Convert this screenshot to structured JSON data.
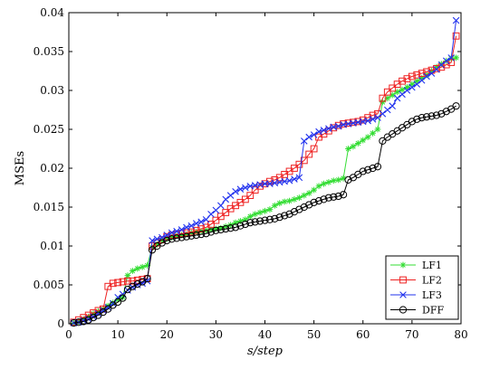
{
  "chart_data": {
    "type": "line",
    "xlabel": "s/step",
    "ylabel": "MSEs",
    "xlim": [
      0,
      80
    ],
    "ylim": [
      0,
      0.04
    ],
    "x_ticks": [
      "0",
      "10",
      "20",
      "30",
      "40",
      "50",
      "60",
      "70",
      "80"
    ],
    "y_ticks": [
      "0",
      "0.005",
      "0.01",
      "0.015",
      "0.02",
      "0.025",
      "0.03",
      "0.035",
      "0.04"
    ],
    "grid": false,
    "legend_position": "bottom-right",
    "x": [
      1,
      2,
      3,
      4,
      5,
      6,
      7,
      8,
      9,
      10,
      11,
      12,
      13,
      14,
      15,
      16,
      17,
      18,
      19,
      20,
      21,
      22,
      23,
      24,
      25,
      26,
      27,
      28,
      29,
      30,
      31,
      32,
      33,
      34,
      35,
      36,
      37,
      38,
      39,
      40,
      41,
      42,
      43,
      44,
      45,
      46,
      47,
      48,
      49,
      50,
      51,
      52,
      53,
      54,
      55,
      56,
      57,
      58,
      59,
      60,
      61,
      62,
      63,
      64,
      65,
      66,
      67,
      68,
      69,
      70,
      71,
      72,
      73,
      74,
      75,
      76,
      77,
      78,
      79
    ],
    "series": [
      {
        "name": "LF1",
        "color": "#33dd33",
        "marker": "asterisk",
        "values": [
          0.0001,
          0.0003,
          0.0006,
          0.0009,
          0.0013,
          0.0016,
          0.0019,
          0.0023,
          0.0027,
          0.0031,
          0.0034,
          0.0062,
          0.0068,
          0.0071,
          0.0073,
          0.0075,
          0.0098,
          0.0102,
          0.0107,
          0.0109,
          0.0111,
          0.0113,
          0.0114,
          0.0115,
          0.0117,
          0.0118,
          0.0119,
          0.012,
          0.0121,
          0.0122,
          0.0123,
          0.0125,
          0.0127,
          0.013,
          0.0132,
          0.0134,
          0.0138,
          0.0141,
          0.0143,
          0.0145,
          0.0147,
          0.0152,
          0.0155,
          0.0157,
          0.0158,
          0.016,
          0.0162,
          0.0165,
          0.0168,
          0.0172,
          0.0177,
          0.018,
          0.0182,
          0.0184,
          0.0185,
          0.0187,
          0.0225,
          0.0228,
          0.0232,
          0.0236,
          0.024,
          0.0245,
          0.025,
          0.0285,
          0.029,
          0.0294,
          0.0298,
          0.0301,
          0.0304,
          0.0308,
          0.0312,
          0.0316,
          0.032,
          0.0325,
          0.033,
          0.0334,
          0.0338,
          0.0341,
          0.0342
        ]
      },
      {
        "name": "LF2",
        "color": "#ee2222",
        "marker": "square",
        "values": [
          0.0002,
          0.0005,
          0.0008,
          0.0011,
          0.0014,
          0.0017,
          0.0019,
          0.0048,
          0.0052,
          0.0053,
          0.0054,
          0.0055,
          0.0055,
          0.0056,
          0.0057,
          0.0058,
          0.01,
          0.0104,
          0.0108,
          0.0112,
          0.0114,
          0.0115,
          0.0116,
          0.0117,
          0.0118,
          0.012,
          0.0122,
          0.0124,
          0.0128,
          0.0133,
          0.0138,
          0.0143,
          0.0148,
          0.0152,
          0.0156,
          0.016,
          0.0165,
          0.0172,
          0.0177,
          0.018,
          0.0183,
          0.0185,
          0.0188,
          0.0192,
          0.0196,
          0.02,
          0.0205,
          0.021,
          0.0218,
          0.0225,
          0.024,
          0.0244,
          0.0248,
          0.0252,
          0.0255,
          0.0257,
          0.0258,
          0.0259,
          0.026,
          0.0262,
          0.0265,
          0.0268,
          0.027,
          0.029,
          0.0298,
          0.0303,
          0.0308,
          0.0312,
          0.0315,
          0.0318,
          0.032,
          0.0322,
          0.0324,
          0.0326,
          0.0328,
          0.033,
          0.0333,
          0.0336,
          0.037
        ]
      },
      {
        "name": "LF3",
        "color": "#2233ee",
        "marker": "x",
        "values": [
          0.0001,
          0.0002,
          0.0004,
          0.0006,
          0.0009,
          0.0013,
          0.0017,
          0.0021,
          0.0026,
          0.0034,
          0.0038,
          0.0043,
          0.0047,
          0.005,
          0.0052,
          0.0055,
          0.0107,
          0.0109,
          0.0111,
          0.0114,
          0.0117,
          0.0119,
          0.0121,
          0.0124,
          0.0126,
          0.0129,
          0.0131,
          0.0134,
          0.0141,
          0.0146,
          0.0152,
          0.016,
          0.0165,
          0.017,
          0.0173,
          0.0175,
          0.0177,
          0.0178,
          0.0179,
          0.018,
          0.018,
          0.0181,
          0.0182,
          0.0183,
          0.0184,
          0.0186,
          0.0188,
          0.0235,
          0.024,
          0.0243,
          0.0247,
          0.0249,
          0.0251,
          0.0253,
          0.0254,
          0.0256,
          0.0257,
          0.0258,
          0.0259,
          0.026,
          0.0261,
          0.0263,
          0.0265,
          0.027,
          0.0275,
          0.028,
          0.029,
          0.0295,
          0.03,
          0.0304,
          0.0308,
          0.0313,
          0.0318,
          0.0322,
          0.0327,
          0.0333,
          0.0338,
          0.0342,
          0.039
        ]
      },
      {
        "name": "DFF",
        "color": "#000000",
        "marker": "circle",
        "values": [
          0.0001,
          0.0002,
          0.0003,
          0.0005,
          0.0008,
          0.0011,
          0.0015,
          0.0019,
          0.0024,
          0.0028,
          0.0033,
          0.0044,
          0.0048,
          0.0051,
          0.0054,
          0.0058,
          0.0095,
          0.01,
          0.0104,
          0.0107,
          0.0109,
          0.011,
          0.0111,
          0.0112,
          0.0113,
          0.0114,
          0.0115,
          0.0116,
          0.0118,
          0.012,
          0.0121,
          0.0122,
          0.0123,
          0.0124,
          0.0126,
          0.0128,
          0.013,
          0.0131,
          0.0132,
          0.0133,
          0.0134,
          0.0135,
          0.0137,
          0.0139,
          0.0141,
          0.0144,
          0.0147,
          0.015,
          0.0153,
          0.0156,
          0.0158,
          0.016,
          0.0162,
          0.0163,
          0.0164,
          0.0166,
          0.0185,
          0.0188,
          0.0192,
          0.0196,
          0.0198,
          0.02,
          0.0202,
          0.0235,
          0.024,
          0.0244,
          0.0248,
          0.0252,
          0.0256,
          0.026,
          0.0263,
          0.0265,
          0.0266,
          0.0267,
          0.0268,
          0.027,
          0.0273,
          0.0276,
          0.028
        ]
      }
    ]
  }
}
